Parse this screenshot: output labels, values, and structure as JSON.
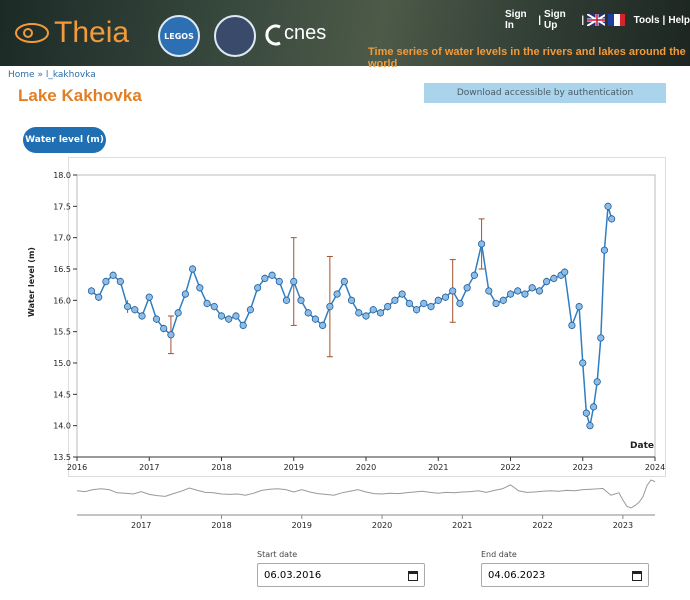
{
  "header": {
    "logo": "Theia",
    "legos": "LEGOS",
    "cnes": "cnes",
    "links": [
      "Sign In",
      "Sign Up",
      "Tools",
      "Help"
    ],
    "separator": "|",
    "tagline": "Time series of water levels in the rivers and lakes around the world"
  },
  "breadcrumb": {
    "home": "Home",
    "separator": "»",
    "current": "l_kakhovka"
  },
  "title": "Lake Kakhovka",
  "download": "Download accessible by authentication",
  "tab": "Water level (m)",
  "chart_data": {
    "type": "line",
    "y_label": "Water level (m)",
    "x_label": "Date",
    "x": [
      2016.2,
      2016.3,
      2016.4,
      2016.5,
      2016.6,
      2016.7,
      2016.8,
      2016.9,
      2017.0,
      2017.1,
      2017.2,
      2017.3,
      2017.4,
      2017.5,
      2017.6,
      2017.7,
      2017.8,
      2017.9,
      2018.0,
      2018.1,
      2018.2,
      2018.3,
      2018.4,
      2018.5,
      2018.6,
      2018.7,
      2018.8,
      2018.9,
      2019.0,
      2019.1,
      2019.2,
      2019.3,
      2019.4,
      2019.5,
      2019.6,
      2019.7,
      2019.8,
      2019.9,
      2020.0,
      2020.1,
      2020.2,
      2020.3,
      2020.4,
      2020.5,
      2020.6,
      2020.7,
      2020.8,
      2020.9,
      2021.0,
      2021.1,
      2021.2,
      2021.3,
      2021.4,
      2021.5,
      2021.6,
      2021.7,
      2021.8,
      2021.9,
      2022.0,
      2022.1,
      2022.2,
      2022.3,
      2022.4,
      2022.5,
      2022.6,
      2022.7,
      2022.75,
      2022.85,
      2022.95,
      2023.0,
      2023.05,
      2023.1,
      2023.15,
      2023.2,
      2023.25,
      2023.3,
      2023.35,
      2023.4
    ],
    "values": [
      16.15,
      16.05,
      16.3,
      16.4,
      16.3,
      15.9,
      15.85,
      15.75,
      16.05,
      15.7,
      15.55,
      15.45,
      15.8,
      16.1,
      16.5,
      16.2,
      15.95,
      15.9,
      15.75,
      15.7,
      15.75,
      15.6,
      15.85,
      16.2,
      16.35,
      16.4,
      16.3,
      16.0,
      16.3,
      16.0,
      15.8,
      15.7,
      15.6,
      15.9,
      16.1,
      16.3,
      16.0,
      15.8,
      15.75,
      15.85,
      15.8,
      15.9,
      16.0,
      16.1,
      15.95,
      15.85,
      15.95,
      15.9,
      16.0,
      16.05,
      16.15,
      15.95,
      16.2,
      16.4,
      16.9,
      16.15,
      15.95,
      16.0,
      16.1,
      16.15,
      16.1,
      16.2,
      16.15,
      16.3,
      16.35,
      16.4,
      16.45,
      15.6,
      15.9,
      15.0,
      14.2,
      14.0,
      14.3,
      14.7,
      15.4,
      16.8,
      17.5,
      17.3
    ],
    "errors": [
      0.06,
      0.06,
      0.06,
      0.06,
      0.06,
      0.1,
      0.06,
      0.06,
      0.06,
      0.06,
      0.06,
      0.3,
      0.06,
      0.06,
      0.06,
      0.06,
      0.06,
      0.06,
      0.06,
      0.06,
      0.06,
      0.06,
      0.06,
      0.06,
      0.06,
      0.06,
      0.06,
      0.06,
      0.7,
      0.06,
      0.06,
      0.06,
      0.06,
      0.8,
      0.06,
      0.06,
      0.06,
      0.06,
      0.06,
      0.06,
      0.06,
      0.06,
      0.06,
      0.06,
      0.06,
      0.06,
      0.06,
      0.06,
      0.06,
      0.06,
      0.5,
      0.06,
      0.06,
      0.06,
      0.4,
      0.06,
      0.06,
      0.06,
      0.06,
      0.06,
      0.06,
      0.06,
      0.06,
      0.06,
      0.06,
      0.06,
      0.06,
      0.06,
      0.06,
      0.06,
      0.06,
      0.06,
      0.06,
      0.06,
      0.06,
      0.06,
      0.06,
      0.06
    ],
    "color": "#2f7ec1",
    "error_color": "#a0522d",
    "xlim": [
      2016,
      2024
    ],
    "xticks": [
      2016,
      2017,
      2018,
      2019,
      2020,
      2021,
      2022,
      2023,
      2024
    ],
    "ylim": [
      13.5,
      18.0
    ],
    "yticks": [
      13.5,
      {
        "value": 14.0,
        "label": "14.0"
      },
      14.5,
      {
        "value": 15.0,
        "label": "15.0"
      },
      15.5,
      {
        "value": 16.0,
        "label": "16.0"
      },
      16.5,
      {
        "value": 17.0,
        "label": "17.0"
      },
      17.5,
      {
        "value": 18.0,
        "label": "18.0"
      }
    ],
    "navigator_xticks": [
      2017,
      2018,
      2019,
      2020,
      2021,
      2022,
      2023
    ]
  },
  "date_range": {
    "start_label": "Start date",
    "start": "06.03.2016",
    "end_label": "End date",
    "end": "04.06.2023"
  }
}
